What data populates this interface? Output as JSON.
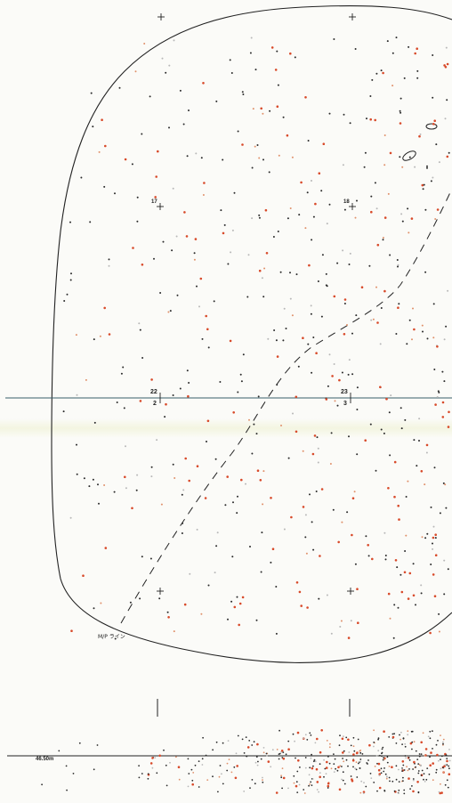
{
  "grid_labels": {
    "g17": "17",
    "g18": "18",
    "g22": "22",
    "g2": "2",
    "g23": "23",
    "g3": "3"
  },
  "line_label": "M/P ライン",
  "elevation": "46.50m",
  "colors": {
    "outline": "#222222",
    "dot_black": "#2a2a2a",
    "dot_red": "#d84a2a",
    "dot_orange": "#e0906a",
    "dot_grey": "#b8b8b8",
    "baseline": "#3a5f6a"
  }
}
